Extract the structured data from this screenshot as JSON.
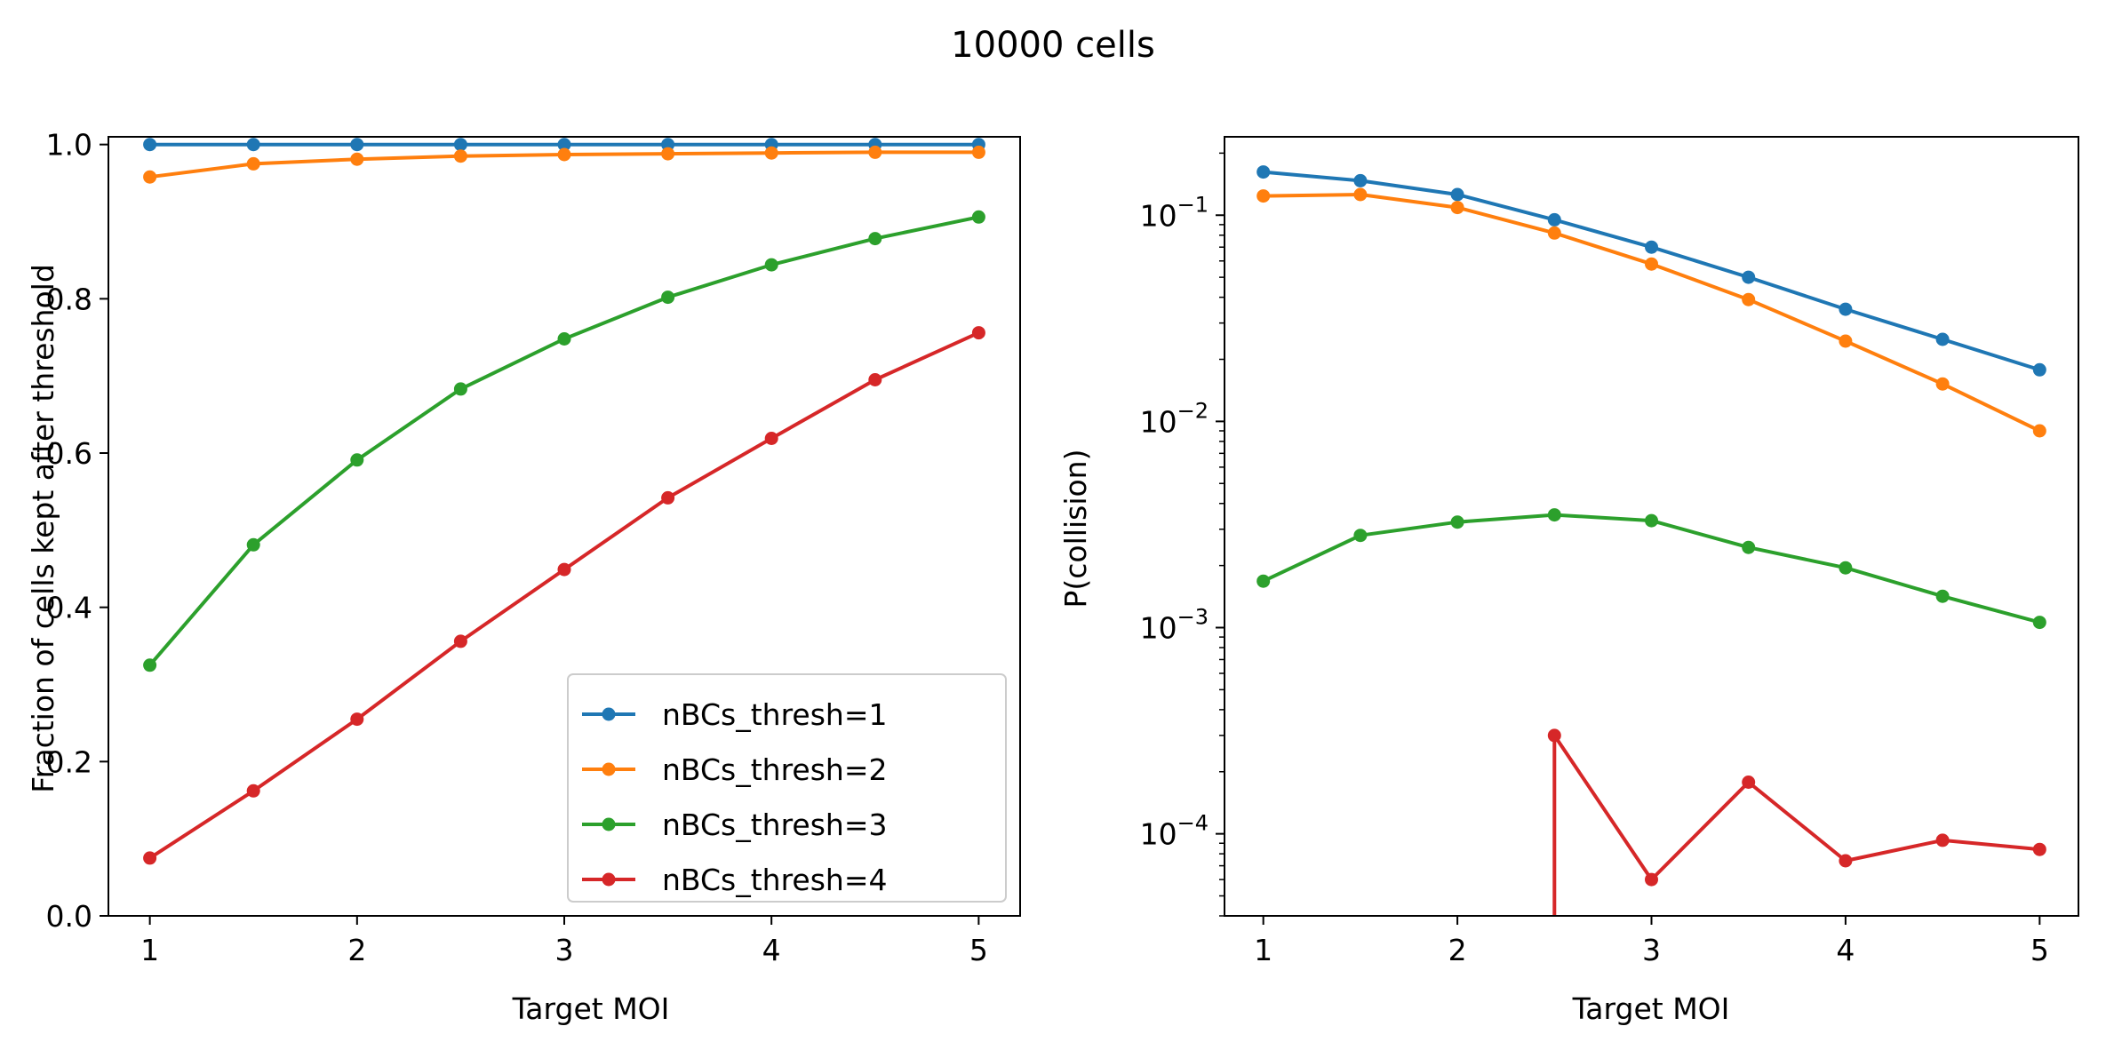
{
  "figure": {
    "title": "10000 cells"
  },
  "series_styles": [
    {
      "name": "nBCs_thresh=1",
      "color": "#1f77b4"
    },
    {
      "name": "nBCs_thresh=2",
      "color": "#ff7f0e"
    },
    {
      "name": "nBCs_thresh=3",
      "color": "#2ca02c"
    },
    {
      "name": "nBCs_thresh=4",
      "color": "#d62728"
    }
  ],
  "chart_data": [
    {
      "type": "line",
      "title": "",
      "xlabel": "Target MOI",
      "ylabel": "Fraction of cells kept after threshold",
      "xlim": [
        0.8,
        5.2
      ],
      "ylim": [
        0.0,
        1.01
      ],
      "yscale": "linear",
      "xticks": [
        1,
        2,
        3,
        4,
        5
      ],
      "yticks": [
        0.0,
        0.2,
        0.4,
        0.6,
        0.8,
        1.0
      ],
      "ytick_labels": [
        "0.0",
        "0.2",
        "0.4",
        "0.6",
        "0.8",
        "1.0"
      ],
      "grid": false,
      "legend": "lower-right",
      "x": [
        1.0,
        1.5,
        2.0,
        2.5,
        3.0,
        3.5,
        4.0,
        4.5,
        5.0
      ],
      "series": [
        {
          "name": "nBCs_thresh=1",
          "values": [
            1.0,
            1.0,
            1.0,
            1.0,
            1.0,
            1.0,
            1.0,
            1.0,
            1.0
          ]
        },
        {
          "name": "nBCs_thresh=2",
          "values": [
            0.958,
            0.975,
            0.981,
            0.985,
            0.987,
            0.988,
            0.989,
            0.99,
            0.99
          ]
        },
        {
          "name": "nBCs_thresh=3",
          "values": [
            0.325,
            0.481,
            0.591,
            0.683,
            0.748,
            0.802,
            0.844,
            0.878,
            0.906
          ]
        },
        {
          "name": "nBCs_thresh=4",
          "values": [
            0.075,
            0.162,
            0.255,
            0.356,
            0.449,
            0.542,
            0.619,
            0.695,
            0.756
          ]
        }
      ]
    },
    {
      "type": "line",
      "title": "",
      "xlabel": "Target MOI",
      "ylabel": "P(collision)",
      "xlim": [
        0.8,
        5.2
      ],
      "ylim": [
        4e-05,
        0.24
      ],
      "yscale": "log",
      "xticks": [
        1,
        2,
        3,
        4,
        5
      ],
      "yticks": [
        0.0001,
        0.001,
        0.01,
        0.1
      ],
      "ytick_labels": [
        "10^-4",
        "10^-3",
        "10^-2",
        "10^-1"
      ],
      "grid": false,
      "legend": "none",
      "x": [
        1.0,
        1.5,
        2.0,
        2.5,
        3.0,
        3.5,
        4.0,
        4.5,
        5.0
      ],
      "series": [
        {
          "name": "nBCs_thresh=1",
          "values": [
            0.162,
            0.147,
            0.126,
            0.095,
            0.07,
            0.05,
            0.035,
            0.025,
            0.0178
          ]
        },
        {
          "name": "nBCs_thresh=2",
          "values": [
            0.124,
            0.126,
            0.109,
            0.082,
            0.058,
            0.039,
            0.0245,
            0.0152,
            0.009
          ]
        },
        {
          "name": "nBCs_thresh=3",
          "values": [
            0.00168,
            0.0028,
            0.00325,
            0.00352,
            0.0033,
            0.00245,
            0.00195,
            0.00142,
            0.00106
          ]
        },
        {
          "name": "nBCs_thresh=4",
          "values": [
            0,
            0,
            0,
            0.0003,
            6e-05,
            0.000178,
            7.4e-05,
            9.3e-05,
            8.4e-05
          ]
        }
      ]
    }
  ]
}
